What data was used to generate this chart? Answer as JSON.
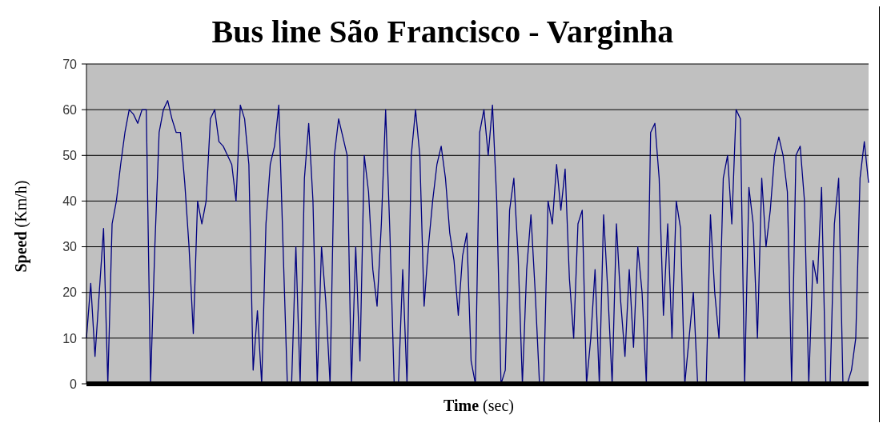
{
  "chart_data": {
    "type": "line",
    "title": "Bus line São Francisco - Varginha",
    "xlabel": "Time (sec)",
    "ylabel": "Speed (Km/h)",
    "categories": [
      null,
      null,
      null,
      null,
      null,
      null,
      null,
      null,
      null,
      null,
      null,
      null,
      null,
      null,
      null,
      null,
      null,
      null,
      null,
      null,
      null,
      null,
      null,
      null,
      null,
      null,
      null,
      null,
      null,
      null,
      null,
      null,
      null,
      null,
      null,
      null,
      null,
      null,
      null,
      null,
      null,
      null,
      null,
      null,
      null,
      null,
      null,
      null,
      null,
      null,
      null,
      null,
      null,
      null,
      null,
      null,
      null,
      null,
      null,
      null,
      null,
      null,
      null,
      null,
      null,
      null,
      null,
      null,
      null,
      null,
      null,
      null,
      null,
      null,
      null,
      null,
      null,
      null,
      null,
      null,
      null,
      null,
      null,
      null,
      null,
      null,
      null,
      null,
      null,
      null,
      null,
      null,
      null,
      null,
      null,
      null,
      null,
      null,
      null,
      null,
      null,
      null,
      null,
      null,
      null,
      null,
      null,
      null,
      null,
      null,
      null,
      null,
      null,
      null,
      null,
      null,
      null,
      null,
      null,
      null,
      null,
      null,
      null,
      null,
      null,
      null,
      null,
      null,
      null,
      null,
      null,
      null,
      null,
      null,
      null,
      null,
      null,
      null,
      null,
      null,
      null,
      null,
      null,
      null,
      null,
      null,
      null,
      null,
      null,
      null,
      null,
      null,
      null,
      null,
      null,
      null,
      null,
      null,
      null,
      null,
      null,
      null,
      null,
      null,
      null,
      null,
      null,
      null,
      null,
      null,
      null,
      null,
      null,
      null,
      null,
      null,
      null,
      null,
      null,
      null,
      null,
      null,
      null,
      null
    ],
    "series": [
      {
        "color": "#000080",
        "values": [
          10,
          22,
          6,
          20,
          34,
          0,
          35,
          40,
          48,
          55,
          60,
          59,
          57,
          60,
          60,
          0,
          30,
          55,
          60,
          62,
          58,
          55,
          55,
          44,
          30,
          11,
          40,
          35,
          40,
          58,
          60,
          53,
          52,
          50,
          48,
          40,
          61,
          58,
          48,
          3,
          16,
          0,
          35,
          48,
          52,
          61,
          30,
          0,
          0,
          30,
          0,
          45,
          57,
          40,
          0,
          30,
          18,
          0,
          50,
          58,
          54,
          50,
          0,
          30,
          5,
          50,
          42,
          25,
          17,
          35,
          60,
          33,
          0,
          0,
          25,
          0,
          50,
          60,
          50,
          17,
          30,
          40,
          48,
          52,
          45,
          33,
          27,
          15,
          28,
          33,
          5,
          0,
          55,
          60,
          50,
          61,
          40,
          0,
          3,
          38,
          45,
          28,
          0,
          25,
          37,
          20,
          0,
          0,
          40,
          35,
          48,
          38,
          47,
          23,
          10,
          35,
          38,
          0,
          10,
          25,
          0,
          37,
          20,
          0,
          35,
          18,
          6,
          25,
          8,
          30,
          20,
          0,
          55,
          57,
          45,
          15,
          35,
          10,
          40,
          34,
          0,
          10,
          20,
          0,
          0,
          0,
          37,
          20,
          10,
          45,
          50,
          35,
          60,
          58,
          0,
          43,
          35,
          10,
          45,
          30,
          38,
          50,
          54,
          50,
          42,
          0,
          50,
          52,
          40,
          0,
          27,
          22,
          43,
          0,
          0,
          35,
          45,
          0,
          0,
          3,
          10,
          45,
          53,
          44
        ]
      }
    ],
    "ylim": [
      0,
      70
    ],
    "yticks": [
      0,
      10,
      20,
      30,
      40,
      50,
      60,
      70
    ],
    "grid": "y",
    "marker": "none",
    "line_style": "solid"
  }
}
